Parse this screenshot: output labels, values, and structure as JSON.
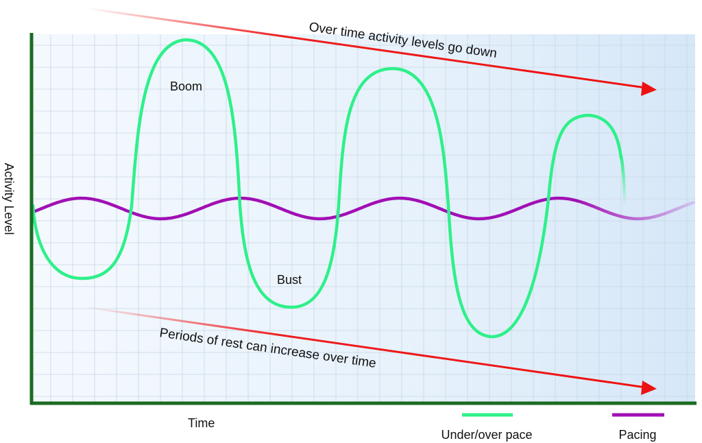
{
  "diagram": {
    "y_axis_label": "Activity Level",
    "x_axis_label": "Time",
    "top_arrow_label": "Over time activity levels go down",
    "bottom_arrow_label": "Periods of rest can increase over time",
    "boom_label": "Boom",
    "bust_label": "Bust",
    "legend": [
      {
        "label": "Under/over pace",
        "color": "#2ef08a"
      },
      {
        "label": "Pacing",
        "color": "#a10fb4"
      }
    ]
  },
  "colors": {
    "axis": "#1c6b23",
    "arrow": "#ee1111",
    "boom_bust": "#2ef08a",
    "pacing": "#a10fb4",
    "grid": "#c8d6e3",
    "plot_bg_left": "#f3f8fd",
    "plot_bg_right": "#d9e9f8"
  }
}
